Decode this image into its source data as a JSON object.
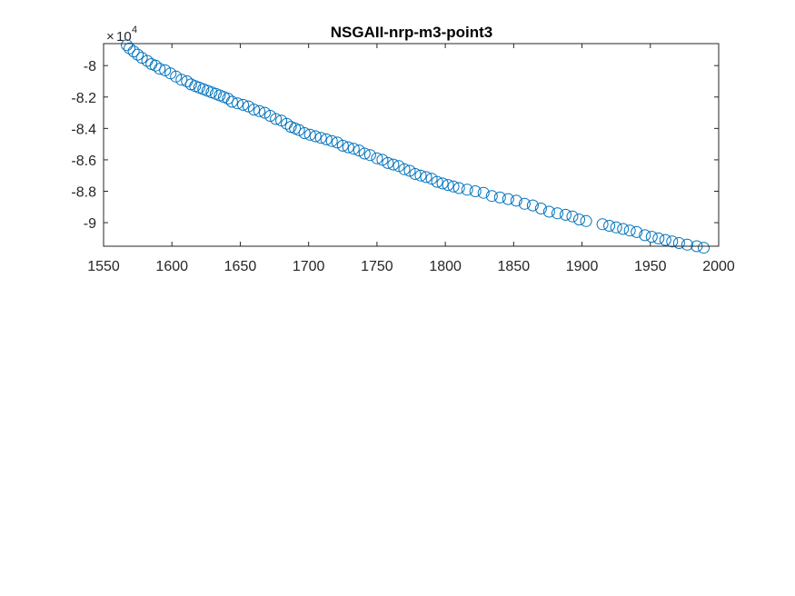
{
  "chart_data": {
    "type": "scatter",
    "title": "NSGAII-nrp-m3-point3",
    "xlabel": "",
    "ylabel": "",
    "xlim": [
      1550,
      2000
    ],
    "ylim": [
      -91.5,
      -78.6
    ],
    "y_scale_factor_label": {
      "base": "10",
      "exponent": "4"
    },
    "x_ticks": [
      1550,
      1600,
      1650,
      1700,
      1750,
      1800,
      1850,
      1900,
      1950,
      2000
    ],
    "y_ticks": [
      -80,
      -82,
      -84,
      -86,
      -88,
      -90
    ],
    "y_tick_labels": [
      "-8",
      "-8.2",
      "-8.4",
      "-8.6",
      "-8.8",
      "-9"
    ],
    "marker": "circle-open",
    "grid": false,
    "colors": {
      "marker": "#0072BD",
      "axis": "#262626"
    },
    "points": [
      [
        1567,
        -78.7
      ],
      [
        1569,
        -78.9
      ],
      [
        1572,
        -79.1
      ],
      [
        1575,
        -79.3
      ],
      [
        1578,
        -79.5
      ],
      [
        1582,
        -79.7
      ],
      [
        1585,
        -79.9
      ],
      [
        1588,
        -80.0
      ],
      [
        1591,
        -80.2
      ],
      [
        1595,
        -80.3
      ],
      [
        1599,
        -80.5
      ],
      [
        1603,
        -80.7
      ],
      [
        1607,
        -80.9
      ],
      [
        1611,
        -81.0
      ],
      [
        1614,
        -81.2
      ],
      [
        1617,
        -81.3
      ],
      [
        1620,
        -81.4
      ],
      [
        1623,
        -81.5
      ],
      [
        1626,
        -81.6
      ],
      [
        1629,
        -81.7
      ],
      [
        1632,
        -81.8
      ],
      [
        1635,
        -81.9
      ],
      [
        1638,
        -82.0
      ],
      [
        1641,
        -82.1
      ],
      [
        1644,
        -82.3
      ],
      [
        1648,
        -82.4
      ],
      [
        1652,
        -82.5
      ],
      [
        1656,
        -82.6
      ],
      [
        1660,
        -82.8
      ],
      [
        1664,
        -82.9
      ],
      [
        1668,
        -83.0
      ],
      [
        1672,
        -83.2
      ],
      [
        1676,
        -83.4
      ],
      [
        1680,
        -83.5
      ],
      [
        1684,
        -83.7
      ],
      [
        1687,
        -83.9
      ],
      [
        1690,
        -84.0
      ],
      [
        1693,
        -84.1
      ],
      [
        1697,
        -84.3
      ],
      [
        1701,
        -84.4
      ],
      [
        1705,
        -84.5
      ],
      [
        1709,
        -84.6
      ],
      [
        1713,
        -84.7
      ],
      [
        1717,
        -84.8
      ],
      [
        1721,
        -84.9
      ],
      [
        1725,
        -85.1
      ],
      [
        1729,
        -85.2
      ],
      [
        1733,
        -85.3
      ],
      [
        1737,
        -85.4
      ],
      [
        1741,
        -85.6
      ],
      [
        1745,
        -85.7
      ],
      [
        1750,
        -85.9
      ],
      [
        1754,
        -86.0
      ],
      [
        1758,
        -86.2
      ],
      [
        1762,
        -86.3
      ],
      [
        1766,
        -86.4
      ],
      [
        1770,
        -86.6
      ],
      [
        1774,
        -86.7
      ],
      [
        1778,
        -86.9
      ],
      [
        1782,
        -87.0
      ],
      [
        1786,
        -87.1
      ],
      [
        1790,
        -87.2
      ],
      [
        1794,
        -87.4
      ],
      [
        1798,
        -87.5
      ],
      [
        1802,
        -87.6
      ],
      [
        1806,
        -87.7
      ],
      [
        1810,
        -87.8
      ],
      [
        1816,
        -87.9
      ],
      [
        1822,
        -88.0
      ],
      [
        1828,
        -88.1
      ],
      [
        1834,
        -88.3
      ],
      [
        1840,
        -88.4
      ],
      [
        1846,
        -88.5
      ],
      [
        1852,
        -88.6
      ],
      [
        1858,
        -88.8
      ],
      [
        1864,
        -88.9
      ],
      [
        1870,
        -89.1
      ],
      [
        1876,
        -89.3
      ],
      [
        1882,
        -89.4
      ],
      [
        1888,
        -89.5
      ],
      [
        1893,
        -89.6
      ],
      [
        1898,
        -89.8
      ],
      [
        1903,
        -89.9
      ],
      [
        1915,
        -90.1
      ],
      [
        1920,
        -90.2
      ],
      [
        1925,
        -90.3
      ],
      [
        1930,
        -90.4
      ],
      [
        1935,
        -90.5
      ],
      [
        1940,
        -90.6
      ],
      [
        1946,
        -90.8
      ],
      [
        1951,
        -90.9
      ],
      [
        1956,
        -91.0
      ],
      [
        1961,
        -91.1
      ],
      [
        1966,
        -91.2
      ],
      [
        1971,
        -91.3
      ],
      [
        1977,
        -91.4
      ],
      [
        1984,
        -91.5
      ],
      [
        1989,
        -91.6
      ]
    ]
  }
}
